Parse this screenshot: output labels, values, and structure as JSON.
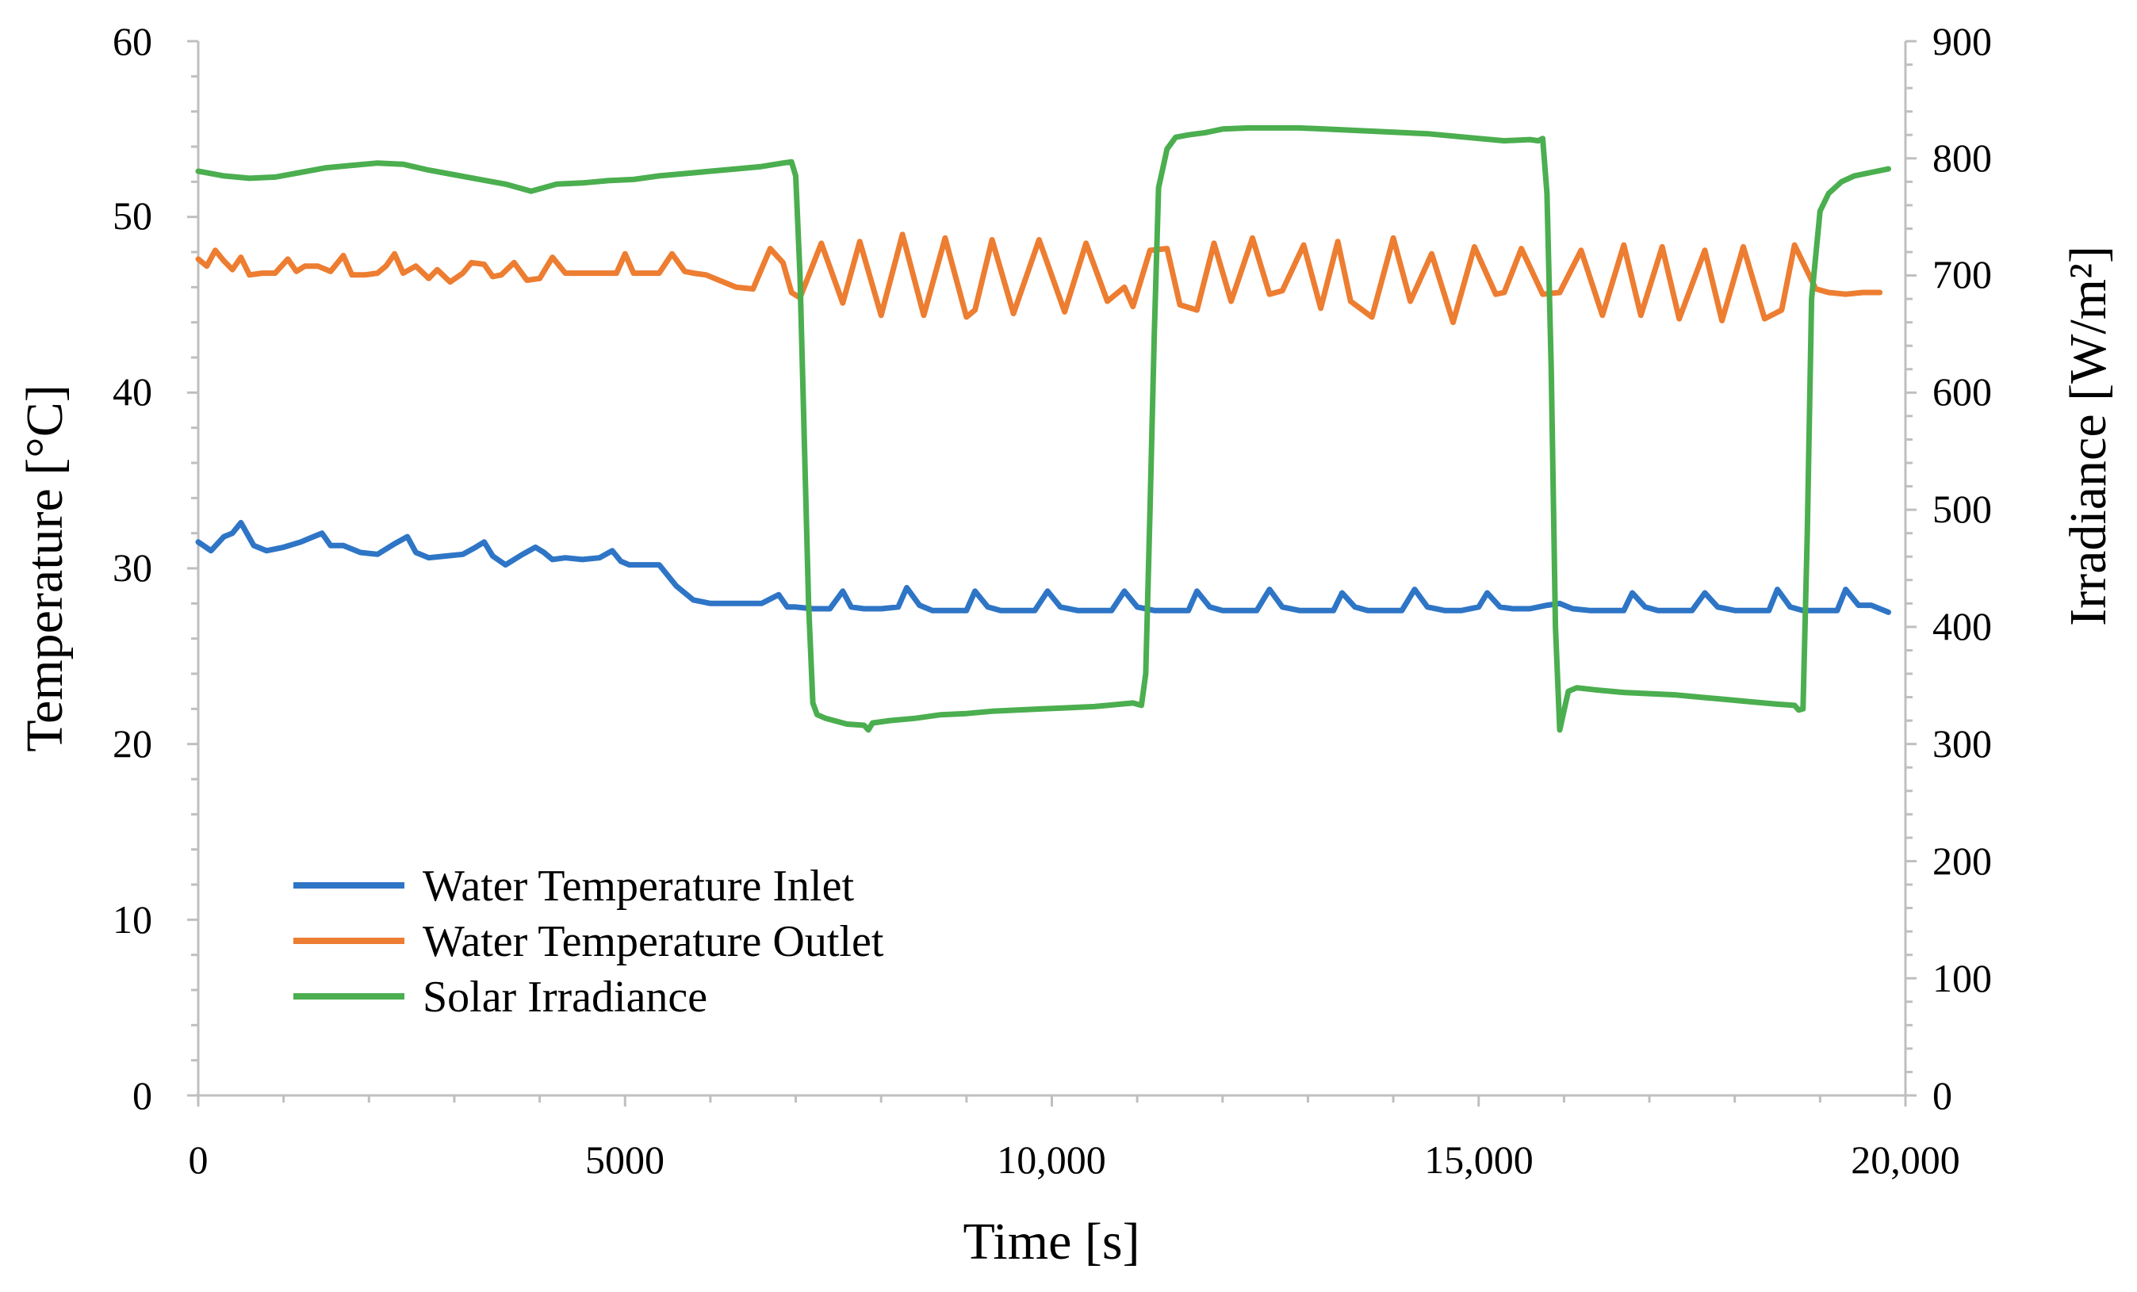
{
  "chart_data": {
    "type": "line",
    "title": "",
    "xlabel": "Time [s]",
    "ylabel": "Temperature [°C]",
    "y2label": "Irradiance [W/m²]",
    "xlim": [
      0,
      20000
    ],
    "ylim": [
      0,
      60
    ],
    "y2lim": [
      0,
      900
    ],
    "xticks": [
      0,
      5000,
      10000,
      15000,
      20000
    ],
    "xtick_labels": [
      "0",
      "5000",
      "10,000",
      "15,000",
      "20,000"
    ],
    "yticks": [
      0,
      10,
      20,
      30,
      40,
      50,
      60
    ],
    "ytick_labels": [
      "0",
      "10",
      "20",
      "30",
      "40",
      "50",
      "60"
    ],
    "y2ticks": [
      0,
      100,
      200,
      300,
      400,
      500,
      600,
      700,
      800,
      900
    ],
    "y2tick_labels": [
      "0",
      "100",
      "200",
      "300",
      "400",
      "500",
      "600",
      "700",
      "800",
      "900"
    ],
    "grid": false,
    "legend_position": "bottom-left",
    "series": [
      {
        "name": "Water Temperature Inlet",
        "axis": "left",
        "color": "#2e75c6",
        "x": [
          0,
          150,
          300,
          400,
          500,
          650,
          800,
          1000,
          1200,
          1350,
          1450,
          1550,
          1700,
          1900,
          2100,
          2300,
          2450,
          2550,
          2700,
          2900,
          3100,
          3250,
          3350,
          3450,
          3600,
          3800,
          3950,
          4050,
          4150,
          4300,
          4500,
          4700,
          4850,
          4950,
          5050,
          5200,
          5400,
          5600,
          5800,
          6000,
          6200,
          6400,
          6600,
          6800,
          6900,
          7000,
          7200,
          7400,
          7550,
          7650,
          7800,
          8000,
          8200,
          8300,
          8450,
          8600,
          8800,
          9000,
          9100,
          9250,
          9400,
          9600,
          9800,
          9950,
          10100,
          10300,
          10500,
          10700,
          10850,
          11000,
          11200,
          11400,
          11600,
          11700,
          11850,
          12000,
          12200,
          12400,
          12550,
          12700,
          12900,
          13100,
          13300,
          13400,
          13550,
          13700,
          13900,
          14100,
          14250,
          14400,
          14600,
          14800,
          15000,
          15100,
          15250,
          15400,
          15600,
          15800,
          15950,
          16100,
          16300,
          16500,
          16700,
          16800,
          16950,
          17100,
          17300,
          17500,
          17650,
          17800,
          18000,
          18200,
          18400,
          18500,
          18650,
          18800,
          19000,
          19200,
          19300,
          19450,
          19600,
          19800
        ],
        "values": [
          31.5,
          31.0,
          31.8,
          32.0,
          32.6,
          31.3,
          31.0,
          31.2,
          31.5,
          31.8,
          32.0,
          31.3,
          31.3,
          30.9,
          30.8,
          31.4,
          31.8,
          30.9,
          30.6,
          30.7,
          30.8,
          31.2,
          31.5,
          30.7,
          30.2,
          30.8,
          31.2,
          30.9,
          30.5,
          30.6,
          30.5,
          30.6,
          31.0,
          30.4,
          30.2,
          30.2,
          30.2,
          29.0,
          28.2,
          28.0,
          28.0,
          28.0,
          28.0,
          28.5,
          27.8,
          27.8,
          27.7,
          27.7,
          28.7,
          27.8,
          27.7,
          27.7,
          27.8,
          28.9,
          27.9,
          27.6,
          27.6,
          27.6,
          28.7,
          27.8,
          27.6,
          27.6,
          27.6,
          28.7,
          27.8,
          27.6,
          27.6,
          27.6,
          28.7,
          27.8,
          27.6,
          27.6,
          27.6,
          28.7,
          27.8,
          27.6,
          27.6,
          27.6,
          28.8,
          27.8,
          27.6,
          27.6,
          27.6,
          28.6,
          27.8,
          27.6,
          27.6,
          27.6,
          28.8,
          27.8,
          27.6,
          27.6,
          27.8,
          28.6,
          27.8,
          27.7,
          27.7,
          27.9,
          28.0,
          27.7,
          27.6,
          27.6,
          27.6,
          28.6,
          27.8,
          27.6,
          27.6,
          27.6,
          28.6,
          27.8,
          27.6,
          27.6,
          27.6,
          28.8,
          27.8,
          27.6,
          27.6,
          27.6,
          28.8,
          27.9,
          27.9,
          27.5
        ]
      },
      {
        "name": "Water Temperature Outlet",
        "axis": "left",
        "color": "#ed7d31",
        "x": [
          0,
          100,
          200,
          300,
          400,
          500,
          600,
          750,
          900,
          1050,
          1150,
          1250,
          1400,
          1550,
          1700,
          1800,
          1950,
          2100,
          2200,
          2300,
          2400,
          2550,
          2700,
          2800,
          2950,
          3100,
          3200,
          3350,
          3450,
          3550,
          3700,
          3850,
          4000,
          4150,
          4300,
          4450,
          4600,
          4750,
          4900,
          5000,
          5100,
          5250,
          5400,
          5550,
          5700,
          5800,
          5950,
          6100,
          6300,
          6500,
          6700,
          6850,
          6950,
          7050,
          7300,
          7550,
          7750,
          8000,
          8250,
          8500,
          8750,
          9000,
          9100,
          9300,
          9550,
          9850,
          10150,
          10400,
          10650,
          10850,
          10950,
          11150,
          11350,
          11500,
          11700,
          11900,
          12100,
          12350,
          12550,
          12700,
          12950,
          13150,
          13350,
          13500,
          13750,
          14000,
          14200,
          14450,
          14700,
          14950,
          15200,
          15300,
          15500,
          15750,
          15950,
          16200,
          16450,
          16700,
          16900,
          17150,
          17350,
          17650,
          17850,
          18100,
          18350,
          18550,
          18700,
          18950,
          19100,
          19300,
          19500,
          19700
        ],
        "values": [
          47.6,
          47.2,
          48.1,
          47.5,
          47.0,
          47.7,
          46.7,
          46.8,
          46.8,
          47.6,
          46.9,
          47.2,
          47.2,
          46.9,
          47.8,
          46.7,
          46.7,
          46.8,
          47.2,
          47.9,
          46.8,
          47.2,
          46.5,
          47.0,
          46.3,
          46.8,
          47.4,
          47.3,
          46.6,
          46.7,
          47.4,
          46.4,
          46.5,
          47.7,
          46.8,
          46.8,
          46.8,
          46.8,
          46.8,
          47.9,
          46.8,
          46.8,
          46.8,
          47.9,
          46.9,
          46.8,
          46.7,
          46.4,
          46.0,
          45.9,
          48.2,
          47.4,
          45.7,
          45.4,
          48.5,
          45.1,
          48.6,
          44.4,
          49.0,
          44.4,
          48.8,
          44.3,
          44.7,
          48.7,
          44.5,
          48.7,
          44.6,
          48.5,
          45.2,
          46.0,
          44.9,
          48.1,
          48.2,
          45.0,
          44.7,
          48.5,
          45.2,
          48.8,
          45.6,
          45.8,
          48.4,
          44.8,
          48.6,
          45.2,
          44.3,
          48.8,
          45.2,
          47.9,
          44.0,
          48.3,
          45.6,
          45.7,
          48.2,
          45.6,
          45.7,
          48.1,
          44.4,
          48.4,
          44.4,
          48.3,
          44.2,
          48.1,
          44.1,
          48.3,
          44.2,
          44.7,
          48.4,
          45.9,
          45.7,
          45.6,
          45.7,
          45.7
        ]
      },
      {
        "name": "Solar Irradiance",
        "axis": "right",
        "color": "#4bae4f",
        "x": [
          0,
          300,
          600,
          900,
          1200,
          1500,
          1800,
          2100,
          2400,
          2700,
          3000,
          3300,
          3600,
          3900,
          4200,
          4500,
          4800,
          5100,
          5400,
          5700,
          6000,
          6300,
          6600,
          6850,
          6950,
          7000,
          7050,
          7100,
          7150,
          7200,
          7250,
          7350,
          7450,
          7600,
          7800,
          7850,
          7900,
          8100,
          8400,
          8700,
          9000,
          9300,
          9600,
          9900,
          10200,
          10500,
          10800,
          10950,
          11050,
          11100,
          11150,
          11200,
          11250,
          11350,
          11450,
          11600,
          11800,
          12000,
          12300,
          12600,
          12900,
          13200,
          13500,
          13800,
          14100,
          14400,
          14700,
          15000,
          15300,
          15600,
          15700,
          15750,
          15800,
          15850,
          15900,
          15950,
          16050,
          16150,
          16400,
          16700,
          17000,
          17300,
          17600,
          17900,
          18200,
          18500,
          18700,
          18750,
          18800,
          18850,
          18900,
          19000,
          19100,
          19250,
          19400,
          19600,
          19800
        ],
        "values": [
          789,
          785,
          783,
          784,
          788,
          792,
          794,
          796,
          795,
          790,
          786,
          782,
          778,
          772,
          778,
          779,
          781,
          782,
          785,
          787,
          789,
          791,
          793,
          796,
          797,
          785,
          700,
          560,
          420,
          335,
          325,
          322,
          320,
          317,
          316,
          312,
          318,
          320,
          322,
          325,
          326,
          328,
          329,
          330,
          331,
          332,
          334,
          335,
          333,
          360,
          500,
          650,
          775,
          808,
          818,
          820,
          822,
          825,
          826,
          826,
          826,
          825,
          824,
          823,
          822,
          821,
          819,
          817,
          815,
          816,
          815,
          817,
          770,
          620,
          400,
          312,
          345,
          348,
          346,
          344,
          343,
          342,
          340,
          338,
          336,
          334,
          333,
          329,
          330,
          480,
          680,
          755,
          770,
          780,
          785,
          788,
          791
        ]
      }
    ]
  }
}
